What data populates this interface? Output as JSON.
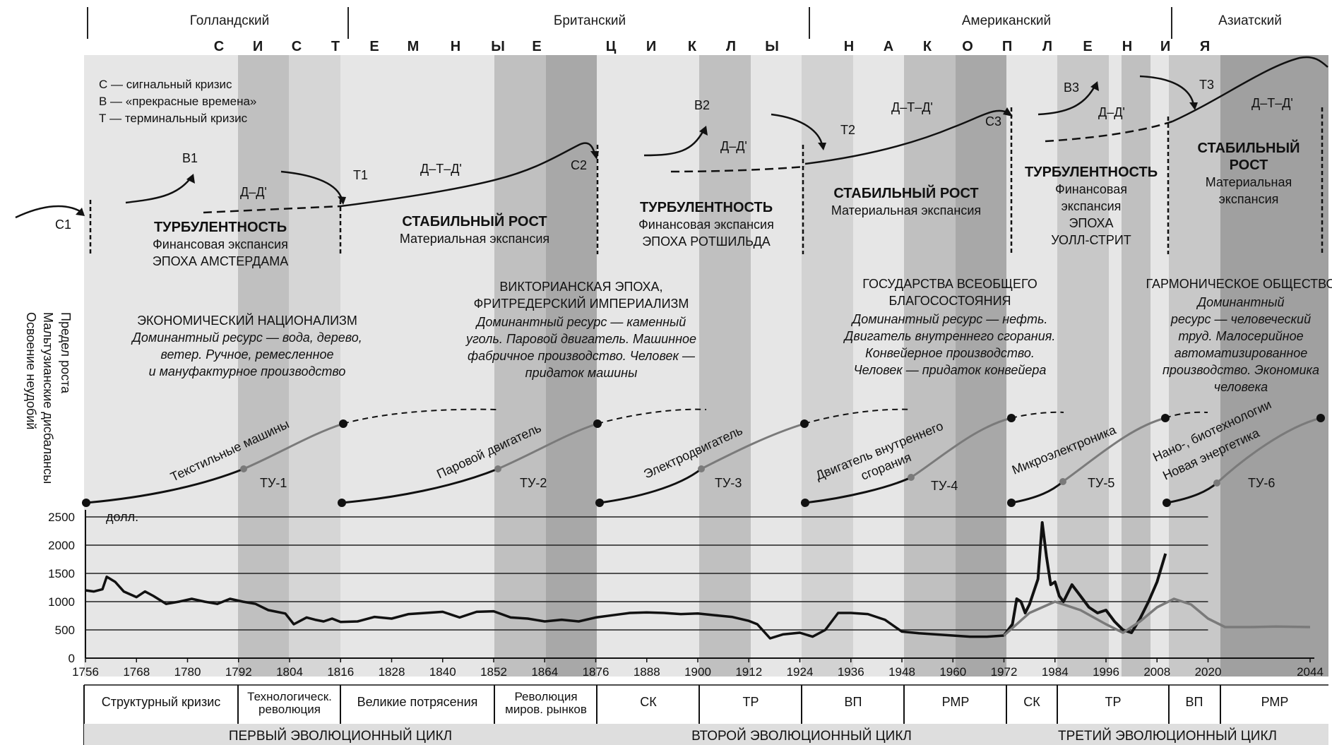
{
  "hegemonies": [
    "Голландский",
    "Британский",
    "Американский",
    "Азиатский"
  ],
  "banner_letters": [
    "С",
    "И",
    "С",
    "Т",
    "Е",
    "М",
    "Н",
    "Ы",
    "Е",
    "Ц",
    "И",
    "К",
    "Л",
    "Ы",
    "Н",
    "А",
    "К",
    "О",
    "П",
    "Л",
    "Е",
    "Н",
    "И",
    "Я"
  ],
  "legend": [
    "С — сигнальный кризис",
    "В — «прекрасные времена»",
    "Т — терминальный кризис"
  ],
  "points": {
    "c1": "С1",
    "b1": "В1",
    "t1": "Т1",
    "c2": "С2",
    "b2": "В2",
    "t2": "Т2",
    "c3": "С3",
    "b3": "В3",
    "t3": "Т3"
  },
  "formulas": {
    "dd": "Д–Д'",
    "dtd": "Д–Т–Д'"
  },
  "phases": {
    "turb1": {
      "title": "ТУРБУЛЕНТНОСТЬ",
      "line1": "Финансовая экспансия",
      "line2": "ЭПОХА АМСТЕРДАМА"
    },
    "stab2": {
      "title": "СТАБИЛЬНЫЙ РОСТ",
      "line1": "Материальная экспансия"
    },
    "turb2": {
      "title": "ТУРБУЛЕНТНОСТЬ",
      "line1": "Финансовая экспансия",
      "line2": "ЭПОХА РОТШИЛЬДА"
    },
    "stab3": {
      "title": "СТАБИЛЬНЫЙ РОСТ",
      "line1": "Материальная экспансия"
    },
    "turb3": {
      "title": "ТУРБУЛЕНТНОСТЬ",
      "line1": "Финансовая",
      "line2": "экспансия",
      "line3": "ЭПОХА",
      "line4": "УОЛЛ-СТРИТ"
    },
    "stab4": {
      "title1": "СТАБИЛЬНЫЙ",
      "title2": "РОСТ",
      "line1": "Материальная",
      "line2": "экспансия"
    }
  },
  "side_labels": [
    "Предел роста",
    "Мальтузианские дисбалансы",
    "Освоение неудобий"
  ],
  "epochs": {
    "e1": {
      "title": "ЭКОНОМИЧЕСКИЙ НАЦИОНАЛИЗМ",
      "lines": [
        "Доминантный ресурс — вода, дерево,",
        "ветер. Ручное, ремесленное",
        "и мануфактурное производство"
      ]
    },
    "e2": {
      "title1": "ВИКТОРИАНСКАЯ ЭПОХА,",
      "title2": "ФРИТРЕДЕРСКИЙ ИМПЕРИАЛИЗМ",
      "lines": [
        "Доминантный ресурс — каменный",
        "уголь. Паровой двигатель. Машинное",
        "фабричное производство. Человек —",
        "придаток машины"
      ]
    },
    "e3": {
      "title1": "ГОСУДАРСТВА ВСЕОБЩЕГО",
      "title2": "БЛАГОСОСТОЯНИЯ",
      "lines": [
        "Доминантный ресурс — нефть.",
        "Двигатель внутреннего сгорания.",
        "Конвейерное производство.",
        "Человек — придаток конвейера"
      ]
    },
    "e4": {
      "title": "ГАРМОНИЧЕСКОЕ ОБЩЕСТВО",
      "lines": [
        "Доминантный",
        "ресурс — человеческий",
        "труд. Малосерийное",
        "автоматизированное",
        "производство. Экономика",
        "человека"
      ]
    }
  },
  "tech_curves": [
    {
      "label": "Текстильные машины",
      "tu": "ТУ-1"
    },
    {
      "label": "Паровой двигатель",
      "tu": "ТУ-2"
    },
    {
      "label": "Электродвигатель",
      "tu": "ТУ-3"
    },
    {
      "label1": "Двигатель внутреннего",
      "label2": "сгорания",
      "tu": "ТУ-4"
    },
    {
      "label": "Микроэлектроника",
      "tu": "ТУ-5"
    },
    {
      "label1": "Нано-, биотехнологии",
      "label2": "Новая энергетика",
      "tu": "ТУ-6"
    }
  ],
  "chart_data": {
    "type": "line",
    "unit_label": "долл.",
    "y_ticks": [
      0,
      500,
      1000,
      1500,
      2000,
      2500
    ],
    "x_ticks": [
      1756,
      1768,
      1780,
      1792,
      1804,
      1816,
      1828,
      1840,
      1852,
      1864,
      1876,
      1888,
      1900,
      1912,
      1924,
      1936,
      1948,
      1960,
      1972,
      1984,
      1996,
      2008,
      2020,
      2044
    ],
    "ylim": [
      0,
      2500
    ],
    "xlim": [
      1756,
      2044
    ],
    "series": [
      {
        "x": [
          1756,
          1758,
          1760,
          1761,
          1763,
          1765,
          1768,
          1770,
          1772,
          1775,
          1778,
          1781,
          1784,
          1787,
          1790,
          1793,
          1796,
          1799,
          1801,
          1803,
          1805,
          1808,
          1810,
          1812,
          1814,
          1816,
          1820,
          1824,
          1828,
          1832,
          1836,
          1840,
          1844,
          1848,
          1852,
          1856,
          1860,
          1864,
          1868,
          1872,
          1876,
          1880,
          1884,
          1888,
          1892,
          1896,
          1900,
          1904,
          1908,
          1912,
          1914,
          1917,
          1920,
          1924,
          1927,
          1930,
          1933,
          1936,
          1940,
          1944,
          1948,
          1952,
          1956,
          1960,
          1964,
          1968,
          1972
        ],
        "y": [
          1200,
          1180,
          1220,
          1440,
          1350,
          1180,
          1080,
          1180,
          1100,
          960,
          1000,
          1050,
          1000,
          960,
          1050,
          1000,
          960,
          850,
          820,
          790,
          600,
          720,
          680,
          650,
          700,
          640,
          650,
          730,
          700,
          780,
          800,
          820,
          720,
          820,
          830,
          720,
          700,
          650,
          680,
          650,
          720,
          760,
          800,
          810,
          800,
          780,
          790,
          760,
          730,
          660,
          600,
          350,
          420,
          450,
          380,
          500,
          800,
          800,
          780,
          680,
          470,
          440,
          420,
          400,
          380,
          380,
          400
        ]
      },
      {
        "x": [
          1972,
          1974,
          1975,
          1976,
          1977,
          1978,
          1980,
          1981,
          1982,
          1983,
          1984,
          1985,
          1986,
          1988,
          1990,
          1992,
          1994,
          1996,
          1998,
          2000,
          2002,
          2004,
          2006,
          2008,
          2010
        ],
        "y": [
          400,
          600,
          1050,
          1000,
          800,
          950,
          1400,
          2400,
          1800,
          1300,
          1350,
          1100,
          1000,
          1300,
          1100,
          900,
          800,
          850,
          650,
          500,
          450,
          700,
          1000,
          1350,
          1850
        ]
      },
      {
        "x": [
          1972,
          1978,
          1984,
          1990,
          1996,
          2000,
          2004,
          2008,
          2012,
          2016,
          2020,
          2024,
          2030,
          2036,
          2044
        ],
        "y": [
          400,
          800,
          1000,
          850,
          600,
          450,
          650,
          900,
          1050,
          950,
          700,
          550,
          550,
          560,
          550
        ]
      }
    ]
  },
  "bottom_phases": [
    "Структурный кризис",
    "Технологическ.",
    "революция",
    "Великие потрясения",
    "Революция",
    "миров. рынков",
    "СК",
    "ТР",
    "ВП",
    "РМР",
    "СК",
    "ТР",
    "ВП",
    "РМР"
  ],
  "cycles": [
    "ПЕРВЫЙ ЭВОЛЮЦИОННЫЙ ЦИКЛ",
    "ВТОРОЙ ЭВОЛЮЦИОННЫЙ ЦИКЛ",
    "ТРЕТИЙ ЭВОЛЮЦИОННЫЙ ЦИКЛ"
  ],
  "colors": {
    "light": "#e6e6e6",
    "mid": "#c0c0c0",
    "dark": "#a0a0a0",
    "cycle_band": "#dedede",
    "curve_grey": "#7a7a7a"
  }
}
